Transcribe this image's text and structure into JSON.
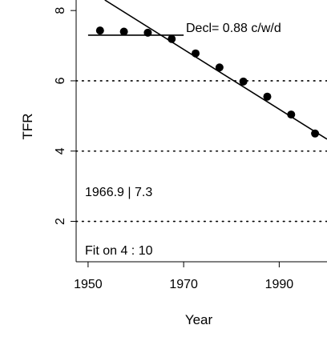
{
  "chart_data": {
    "type": "scatter",
    "xlabel": "Year",
    "ylabel": "TFR",
    "xlim": [
      1947.5,
      2000
    ],
    "ylim": [
      0.85,
      8.3
    ],
    "x_ticks": [
      1950,
      1970,
      1990
    ],
    "y_ticks": [
      2,
      4,
      6,
      8
    ],
    "hlines_dotted": [
      6,
      4,
      2
    ],
    "points": {
      "x": [
        1952.5,
        1957.5,
        1962.5,
        1967.5,
        1972.5,
        1977.5,
        1982.5,
        1987.5,
        1992.5,
        1997.5
      ],
      "y": [
        7.43,
        7.4,
        7.37,
        7.19,
        6.78,
        6.38,
        5.98,
        5.55,
        5.04,
        4.5
      ]
    },
    "plateau": {
      "x": [
        1950,
        1970
      ],
      "y": 7.3
    },
    "fit_line": {
      "x": [
        1953.5,
        2000
      ],
      "y": [
        8.3,
        4.34
      ]
    },
    "annotations": {
      "decline": "Decl= 0.88  c/w/d",
      "break": "1966.9 | 7.3",
      "fit": "Fit on  4 : 10"
    }
  }
}
